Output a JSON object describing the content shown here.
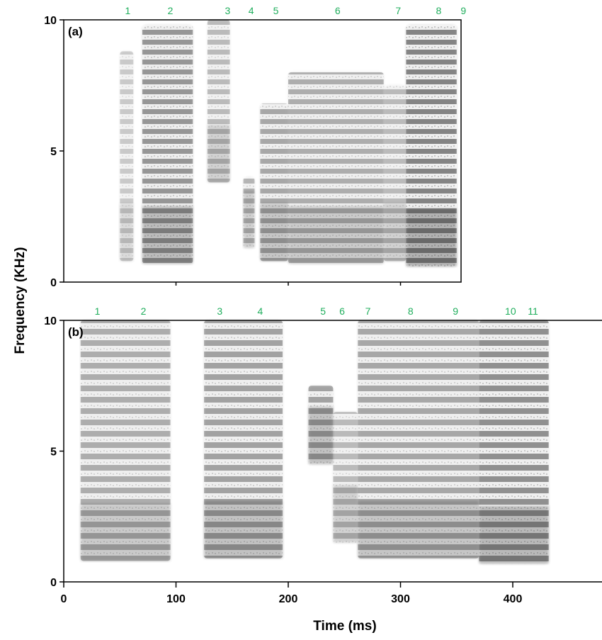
{
  "chart_data": {
    "type": "heatmap",
    "xlabel": "Time (ms)",
    "ylabel": "Frequency (KHz)",
    "xticks": [
      "0",
      "100",
      "200",
      "300",
      "400"
    ],
    "colors": {
      "marker": "#1fae5c",
      "ink": "#000000"
    },
    "panels": [
      {
        "label": "(a)",
        "xlim": [
          0,
          355
        ],
        "ylim": [
          0,
          10
        ],
        "yticks": [
          "0",
          "5",
          "10"
        ],
        "markers": [
          {
            "label": "1",
            "x": 57
          },
          {
            "label": "2",
            "x": 95
          },
          {
            "label": "3",
            "x": 146
          },
          {
            "label": "4",
            "x": 167
          },
          {
            "label": "5",
            "x": 189
          },
          {
            "label": "6",
            "x": 244
          },
          {
            "label": "7",
            "x": 298
          },
          {
            "label": "8",
            "x": 334
          },
          {
            "label": "9",
            "x": 356
          }
        ],
        "regions": [
          {
            "t0": 50,
            "t1": 62,
            "f0": 0.8,
            "f1": 8.8,
            "d": 0.35
          },
          {
            "t0": 70,
            "t1": 115,
            "f0": 0.7,
            "f1": 9.8,
            "d": 0.75
          },
          {
            "t0": 128,
            "t1": 148,
            "f0": 3.8,
            "f1": 10,
            "d": 0.45
          },
          {
            "t0": 160,
            "t1": 170,
            "f0": 1.3,
            "f1": 4.0,
            "d": 0.5
          },
          {
            "t0": 175,
            "t1": 200,
            "f0": 0.8,
            "f1": 6.8,
            "d": 0.6
          },
          {
            "t0": 200,
            "t1": 285,
            "f0": 0.7,
            "f1": 8.0,
            "d": 0.55
          },
          {
            "t0": 285,
            "t1": 305,
            "f0": 0.8,
            "f1": 7.5,
            "d": 0.45
          },
          {
            "t0": 305,
            "t1": 350,
            "f0": 0.6,
            "f1": 9.8,
            "d": 0.9
          }
        ]
      },
      {
        "label": "(b)",
        "xlim": [
          0,
          480
        ],
        "ylim": [
          0,
          10
        ],
        "yticks": [
          "0",
          "5",
          "10"
        ],
        "markers": [
          {
            "label": "1",
            "x": 30
          },
          {
            "label": "2",
            "x": 71
          },
          {
            "label": "3",
            "x": 139
          },
          {
            "label": "4",
            "x": 175
          },
          {
            "label": "5",
            "x": 231
          },
          {
            "label": "6",
            "x": 248
          },
          {
            "label": "7",
            "x": 271
          },
          {
            "label": "8",
            "x": 309
          },
          {
            "label": "9",
            "x": 349
          },
          {
            "label": "10",
            "x": 398
          },
          {
            "label": "11",
            "x": 418
          }
        ],
        "regions": [
          {
            "t0": 15,
            "t1": 95,
            "f0": 0.8,
            "f1": 10,
            "d": 0.55
          },
          {
            "t0": 125,
            "t1": 195,
            "f0": 0.9,
            "f1": 10,
            "d": 0.65
          },
          {
            "t0": 218,
            "t1": 240,
            "f0": 4.5,
            "f1": 7.5,
            "d": 0.65
          },
          {
            "t0": 240,
            "t1": 262,
            "f0": 1.5,
            "f1": 6.5,
            "d": 0.45
          },
          {
            "t0": 262,
            "t1": 370,
            "f0": 0.9,
            "f1": 10,
            "d": 0.6
          },
          {
            "t0": 370,
            "t1": 432,
            "f0": 0.7,
            "f1": 10,
            "d": 0.8
          }
        ]
      }
    ]
  }
}
